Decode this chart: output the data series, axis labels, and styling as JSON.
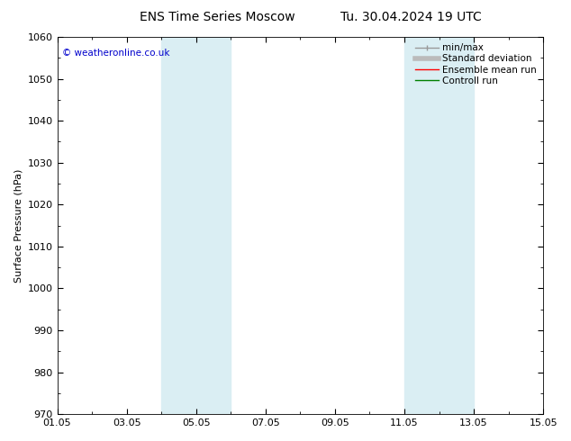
{
  "title_left": "ENS Time Series Moscow",
  "title_right": "Tu. 30.04.2024 19 UTC",
  "ylabel": "Surface Pressure (hPa)",
  "ylim": [
    970,
    1060
  ],
  "yticks": [
    970,
    980,
    990,
    1000,
    1010,
    1020,
    1030,
    1040,
    1050,
    1060
  ],
  "xlim_start": 0,
  "xlim_end": 14,
  "xtick_positions": [
    0,
    2,
    4,
    6,
    8,
    10,
    12,
    14
  ],
  "xtick_labels": [
    "01.05",
    "03.05",
    "05.05",
    "07.05",
    "09.05",
    "11.05",
    "13.05",
    "15.05"
  ],
  "shaded_bands": [
    {
      "x_start": 3.0,
      "x_end": 5.0
    },
    {
      "x_start": 10.0,
      "x_end": 12.0
    }
  ],
  "band_color": "#daeef3",
  "background_color": "#ffffff",
  "copyright_text": "© weatheronline.co.uk",
  "copyright_color": "#0000cc",
  "legend_items": [
    {
      "label": "min/max",
      "color": "#999999",
      "linewidth": 1.0
    },
    {
      "label": "Standard deviation",
      "color": "#bbbbbb",
      "linewidth": 4.0
    },
    {
      "label": "Ensemble mean run",
      "color": "#ff0000",
      "linewidth": 1.0
    },
    {
      "label": "Controll run",
      "color": "#008000",
      "linewidth": 1.0
    }
  ],
  "title_fontsize": 10,
  "tick_fontsize": 8,
  "ylabel_fontsize": 8,
  "legend_fontsize": 7.5
}
